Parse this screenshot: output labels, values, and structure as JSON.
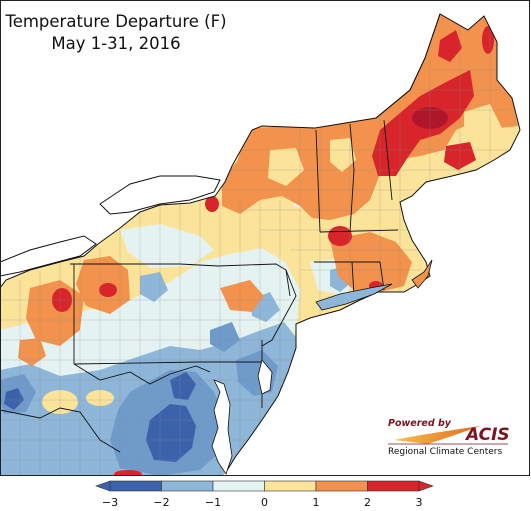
{
  "title": {
    "line1": "Temperature Departure (F)",
    "line2": "May 1-31, 2016"
  },
  "legend": {
    "ticks": [
      "−3",
      "−2",
      "−1",
      "0",
      "1",
      "2",
      "3"
    ],
    "colors": [
      "#3b62ab",
      "#8db6d8",
      "#e4f3f2",
      "#fbe49a",
      "#f2924c",
      "#d7252b"
    ]
  },
  "logo": {
    "powered_by": "Powered by",
    "brand": "ACIS",
    "subtitle": "Regional Climate Centers"
  },
  "palette": {
    "deep_blue": "#3b62ab",
    "mid_blue": "#6f9bcb",
    "light_blue": "#8db6d8",
    "pale_cyan": "#e4f3f2",
    "yellow": "#fbe49a",
    "orange": "#f2924c",
    "red": "#d7252b",
    "dark_red": "#b0162a",
    "water": "#ffffff"
  }
}
